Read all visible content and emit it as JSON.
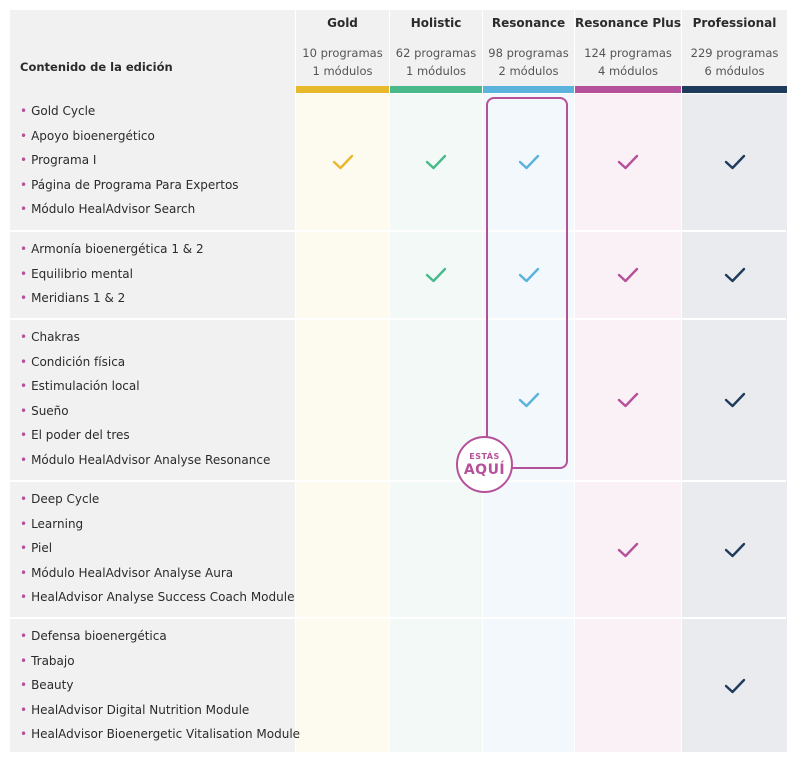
{
  "header": {
    "label_column": "Contenido de la edición",
    "editions": [
      {
        "name": "Gold",
        "programs": "10 programas",
        "modules": "1 módulos",
        "color": "#e8b92a",
        "bg": "#fdfaf0"
      },
      {
        "name": "Holistic",
        "programs": "62 programas",
        "modules": "1 módulos",
        "color": "#49b98b",
        "bg": "#f2f9f6"
      },
      {
        "name": "Resonance",
        "programs": "98 programas",
        "modules": "2 módulos",
        "color": "#5ab2dd",
        "bg": "#f3f8fc"
      },
      {
        "name": "Resonance Plus",
        "programs": "124 programas",
        "modules": "4 módulos",
        "color": "#b5519a",
        "bg": "#f9f1f6"
      },
      {
        "name": "Professional",
        "programs": "229 programas",
        "modules": "6 módulos",
        "color": "#1e3b5c",
        "bg": "#e9ebee"
      }
    ]
  },
  "groups": [
    {
      "features": [
        "Gold Cycle",
        "Apoyo bioenergético",
        "Programa I",
        "Página de Programa Para Expertos",
        "Módulo HealAdvisor Search"
      ],
      "checks": [
        true,
        true,
        true,
        true,
        true
      ]
    },
    {
      "features": [
        "Armonía bioenergética 1 & 2",
        "Equilibrio mental",
        "Meridians 1 & 2"
      ],
      "checks": [
        false,
        true,
        true,
        true,
        true
      ]
    },
    {
      "features": [
        "Chakras",
        "Condición física",
        "Estimulación local",
        "Sueño",
        "El poder del tres",
        "Módulo HealAdvisor Analyse Resonance"
      ],
      "checks": [
        false,
        false,
        true,
        true,
        true
      ]
    },
    {
      "features": [
        "Deep Cycle",
        "Learning",
        "Piel",
        "Módulo HealAdvisor Analyse Aura",
        "HealAdvisor Analyse Success Coach Module"
      ],
      "checks": [
        false,
        false,
        false,
        true,
        true
      ]
    },
    {
      "features": [
        "Defensa bioenergética",
        "Trabajo",
        "Beauty",
        "HealAdvisor Digital Nutrition Module",
        "HealAdvisor Bioenergetic Vitalisation Module"
      ],
      "checks": [
        false,
        false,
        false,
        false,
        true
      ]
    }
  ],
  "badge": {
    "line1": "ESTÁS",
    "line2": "AQUÍ"
  },
  "colors": {
    "bullet": "#b5519a",
    "label_bg": "#f1f1f1",
    "header_bg": "#f1f1f1"
  }
}
